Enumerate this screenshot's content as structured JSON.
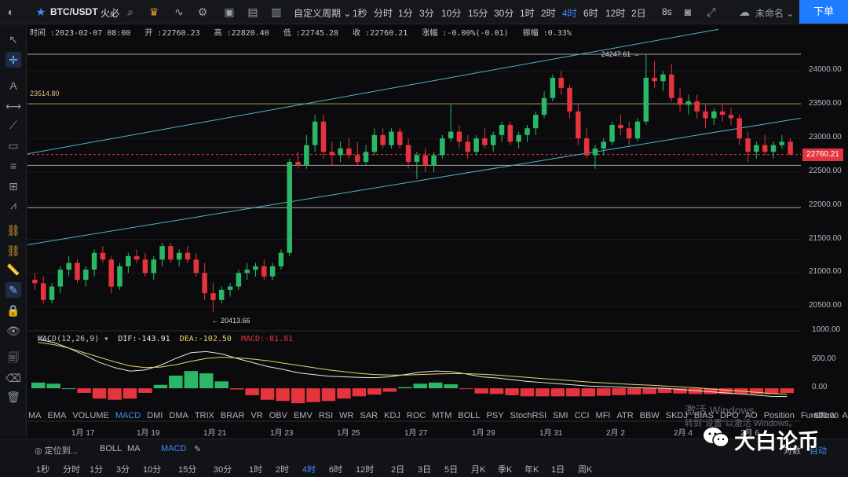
{
  "topbar": {
    "symbol": "BTC/USDT",
    "exchange": "火必",
    "custom_period": "自定义周期",
    "periods": [
      "1秒",
      "分时",
      "1分",
      "3分",
      "10分",
      "15分",
      "30分",
      "1时",
      "2时",
      "4时",
      "6时",
      "12时",
      "2日"
    ],
    "active_period": "4时",
    "eight_s": "8s",
    "user": "未命名",
    "sell_label": "下单"
  },
  "info": {
    "time_label": "时间",
    "time": "2023-02-07 08:00",
    "open_label": "开",
    "open": "22760.23",
    "high_label": "高",
    "high": "22820.40",
    "low_label": "低",
    "low": "22745.28",
    "close_label": "收",
    "close": "22760.21",
    "change_label": "涨幅",
    "change": "-0.00%(-0.01)",
    "amp_label": "振幅",
    "amp": "0.33%"
  },
  "macd": {
    "title": "MACD(12,26,9)",
    "dif": "DIF:-143.91",
    "dea": "DEA:-102.50",
    "macd": "MACD:-81.81"
  },
  "annotations": {
    "max_price": "24247.61",
    "min_price": "20413.66",
    "hline_label": "23514.80",
    "last_price": "22760.21"
  },
  "indicator_tabs": [
    "MA",
    "EMA",
    "VOLUME",
    "MACD",
    "DMI",
    "DMA",
    "TRIX",
    "BRAR",
    "VR",
    "OBV",
    "EMV",
    "RSI",
    "WR",
    "SAR",
    "KDJ",
    "ROC",
    "MTM",
    "BOLL",
    "PSY",
    "StochRSI",
    "SMI",
    "CCI",
    "MFI",
    "ATR",
    "BBW",
    "SKDJ",
    "BIAS",
    "DPO",
    "AO",
    "Position",
    "Fundflow",
    "AI-NetVOL"
  ],
  "active_indicator": "MACD",
  "bottom1": {
    "locate": "定位到...",
    "tags": [
      "BOLL",
      "MA"
    ],
    "macd_tag": "MACD",
    "auto": "自动",
    "zoom_text": "对数"
  },
  "bottom2": [
    "1秒",
    "分时",
    "1分",
    "3分",
    "10分",
    "15分",
    "30分",
    "1时",
    "2时",
    "4时",
    "6时",
    "12时",
    "2日",
    "3日",
    "5日",
    "月K",
    "季K",
    "年K",
    "1日",
    "周K"
  ],
  "bottom2_active": "4时",
  "watermark": {
    "line1": "激活 Windows",
    "line2": "转到\"设置\"以激活 Windows。"
  },
  "brand": "大白论币",
  "colors": {
    "up": "#2bb866",
    "down": "#e5343d",
    "accent": "#1f7cff"
  },
  "chart_data": {
    "type": "candlestick",
    "price_axis": {
      "ticks": [
        24000,
        23500,
        23000,
        22500,
        22000,
        21500,
        21000,
        20500
      ],
      "ylim": [
        20200,
        24600
      ]
    },
    "macd_axis": {
      "ticks": [
        1000,
        500,
        0,
        -500
      ],
      "ylim": [
        -600,
        1000
      ]
    },
    "date_labels": [
      "1月 17",
      "1月 19",
      "1月 21",
      "1月 23",
      "1月 25",
      "1月 27",
      "1月 29",
      "1月 31",
      "2月 2",
      "2月 4",
      "2月 6"
    ],
    "horizontal_lines": [
      24250,
      23514.8,
      22760,
      22600,
      21970
    ],
    "ohlc": [
      [
        20900,
        21000,
        20750,
        20850
      ],
      [
        20850,
        20950,
        20550,
        20600
      ],
      [
        20600,
        20850,
        20550,
        20800
      ],
      [
        20800,
        21100,
        20700,
        21050
      ],
      [
        21050,
        21250,
        20950,
        21150
      ],
      [
        21150,
        21200,
        20850,
        20900
      ],
      [
        20900,
        21100,
        20800,
        21050
      ],
      [
        21050,
        21350,
        20950,
        21300
      ],
      [
        21300,
        21400,
        21150,
        21200
      ],
      [
        21200,
        21250,
        20700,
        20800
      ],
      [
        20800,
        21150,
        20750,
        21100
      ],
      [
        21100,
        21300,
        21000,
        21250
      ],
      [
        21250,
        21350,
        21150,
        21200
      ],
      [
        21200,
        21300,
        20950,
        21000
      ],
      [
        21000,
        21250,
        20900,
        21200
      ],
      [
        21200,
        21450,
        21100,
        21400
      ],
      [
        21400,
        21450,
        21150,
        21200
      ],
      [
        21200,
        21350,
        21100,
        21300
      ],
      [
        21300,
        21400,
        21150,
        21200
      ],
      [
        21200,
        21300,
        20950,
        21000
      ],
      [
        21000,
        21150,
        20600,
        20700
      ],
      [
        20700,
        20850,
        20420,
        20600
      ],
      [
        20600,
        20800,
        20550,
        20750
      ],
      [
        20750,
        20850,
        20650,
        20800
      ],
      [
        20800,
        21050,
        20750,
        21000
      ],
      [
        21000,
        21150,
        20900,
        21050
      ],
      [
        21050,
        21150,
        20950,
        21100
      ],
      [
        21100,
        21200,
        20900,
        20950
      ],
      [
        20950,
        21150,
        20900,
        21100
      ],
      [
        21100,
        21350,
        21050,
        21300
      ],
      [
        21300,
        22700,
        21250,
        22650
      ],
      [
        22650,
        22800,
        22550,
        22600
      ],
      [
        22600,
        23050,
        22550,
        22900
      ],
      [
        22900,
        23350,
        22800,
        23250
      ],
      [
        23250,
        23350,
        22700,
        22800
      ],
      [
        22800,
        22950,
        22600,
        22750
      ],
      [
        22750,
        22950,
        22650,
        22850
      ],
      [
        22850,
        23000,
        22700,
        22750
      ],
      [
        22750,
        22950,
        22600,
        22650
      ],
      [
        22650,
        22900,
        22600,
        22800
      ],
      [
        22800,
        23150,
        22750,
        23050
      ],
      [
        23050,
        23150,
        22850,
        22900
      ],
      [
        22900,
        23150,
        22850,
        23100
      ],
      [
        23100,
        23150,
        22850,
        22900
      ],
      [
        22900,
        23000,
        22550,
        22650
      ],
      [
        22650,
        22800,
        22400,
        22750
      ],
      [
        22750,
        22850,
        22500,
        22600
      ],
      [
        22600,
        22800,
        22500,
        22750
      ],
      [
        22750,
        23050,
        22700,
        23000
      ],
      [
        23000,
        23500,
        22950,
        23100
      ],
      [
        23100,
        23200,
        22850,
        22950
      ],
      [
        22950,
        23050,
        22700,
        22800
      ],
      [
        22800,
        23050,
        22750,
        23000
      ],
      [
        23000,
        23150,
        22850,
        22900
      ],
      [
        22900,
        23100,
        22800,
        23050
      ],
      [
        23050,
        23250,
        22950,
        23200
      ],
      [
        23200,
        23250,
        22900,
        22950
      ],
      [
        22950,
        23100,
        22850,
        23050
      ],
      [
        23050,
        23200,
        22950,
        23150
      ],
      [
        23150,
        23400,
        23050,
        23350
      ],
      [
        23350,
        23700,
        23300,
        23600
      ],
      [
        23600,
        23950,
        23550,
        23900
      ],
      [
        23900,
        24000,
        23650,
        23750
      ],
      [
        23750,
        23800,
        23300,
        23400
      ],
      [
        23400,
        23500,
        22900,
        23000
      ],
      [
        23000,
        23150,
        22700,
        22750
      ],
      [
        22750,
        22900,
        22550,
        22850
      ],
      [
        22850,
        23000,
        22750,
        22950
      ],
      [
        22950,
        23250,
        22900,
        23200
      ],
      [
        23200,
        23350,
        23050,
        23150
      ],
      [
        23150,
        23250,
        22900,
        23000
      ],
      [
        23000,
        23300,
        22950,
        23250
      ],
      [
        23250,
        24250,
        23200,
        23900
      ],
      [
        23900,
        24150,
        23750,
        23850
      ],
      [
        23850,
        24000,
        23700,
        23950
      ],
      [
        23950,
        24100,
        23550,
        23600
      ],
      [
        23600,
        23750,
        23400,
        23500
      ],
      [
        23500,
        23650,
        23350,
        23550
      ],
      [
        23550,
        23650,
        23300,
        23400
      ],
      [
        23400,
        23500,
        23150,
        23300
      ],
      [
        23300,
        23450,
        23200,
        23400
      ],
      [
        23400,
        23500,
        23250,
        23350
      ],
      [
        23350,
        23450,
        23200,
        23300
      ],
      [
        23300,
        23350,
        22900,
        23000
      ],
      [
        23000,
        23100,
        22650,
        22800
      ],
      [
        22800,
        22950,
        22700,
        22900
      ],
      [
        22900,
        23050,
        22750,
        22800
      ],
      [
        22800,
        22950,
        22700,
        22900
      ],
      [
        22900,
        23050,
        22850,
        22950
      ],
      [
        22950,
        23000,
        22740,
        22760
      ]
    ],
    "macd_dif": [
      850,
      800,
      700,
      580,
      450,
      360,
      300,
      320,
      400,
      520,
      620,
      640,
      600,
      520,
      450,
      380,
      330,
      270,
      240,
      210,
      200,
      190,
      185,
      200,
      240,
      280,
      300,
      290,
      250,
      200,
      180,
      150,
      120,
      100,
      80,
      60,
      40,
      30,
      20,
      10,
      5,
      0,
      -20,
      -40,
      -60,
      -80,
      -100,
      -120,
      -140,
      -144
    ],
    "macd_dea": [
      800,
      760,
      700,
      620,
      540,
      460,
      390,
      360,
      370,
      410,
      470,
      520,
      540,
      530,
      510,
      480,
      440,
      400,
      360,
      320,
      290,
      260,
      240,
      230,
      230,
      240,
      250,
      255,
      255,
      245,
      230,
      210,
      190,
      170,
      150,
      130,
      110,
      95,
      80,
      65,
      55,
      40,
      25,
      10,
      -10,
      -30,
      -50,
      -70,
      -90,
      -102
    ],
    "macd_hist": [
      100,
      80,
      0,
      -80,
      -180,
      -200,
      -180,
      -80,
      60,
      220,
      300,
      260,
      120,
      -20,
      -120,
      -200,
      -220,
      -260,
      -240,
      -220,
      -180,
      -140,
      -110,
      -60,
      20,
      80,
      100,
      70,
      -10,
      -90,
      -100,
      -120,
      -140,
      -140,
      -140,
      -140,
      -140,
      -130,
      -120,
      -110,
      -100,
      -80,
      -90,
      -100,
      -100,
      -100,
      -100,
      -100,
      -100,
      -82
    ]
  }
}
